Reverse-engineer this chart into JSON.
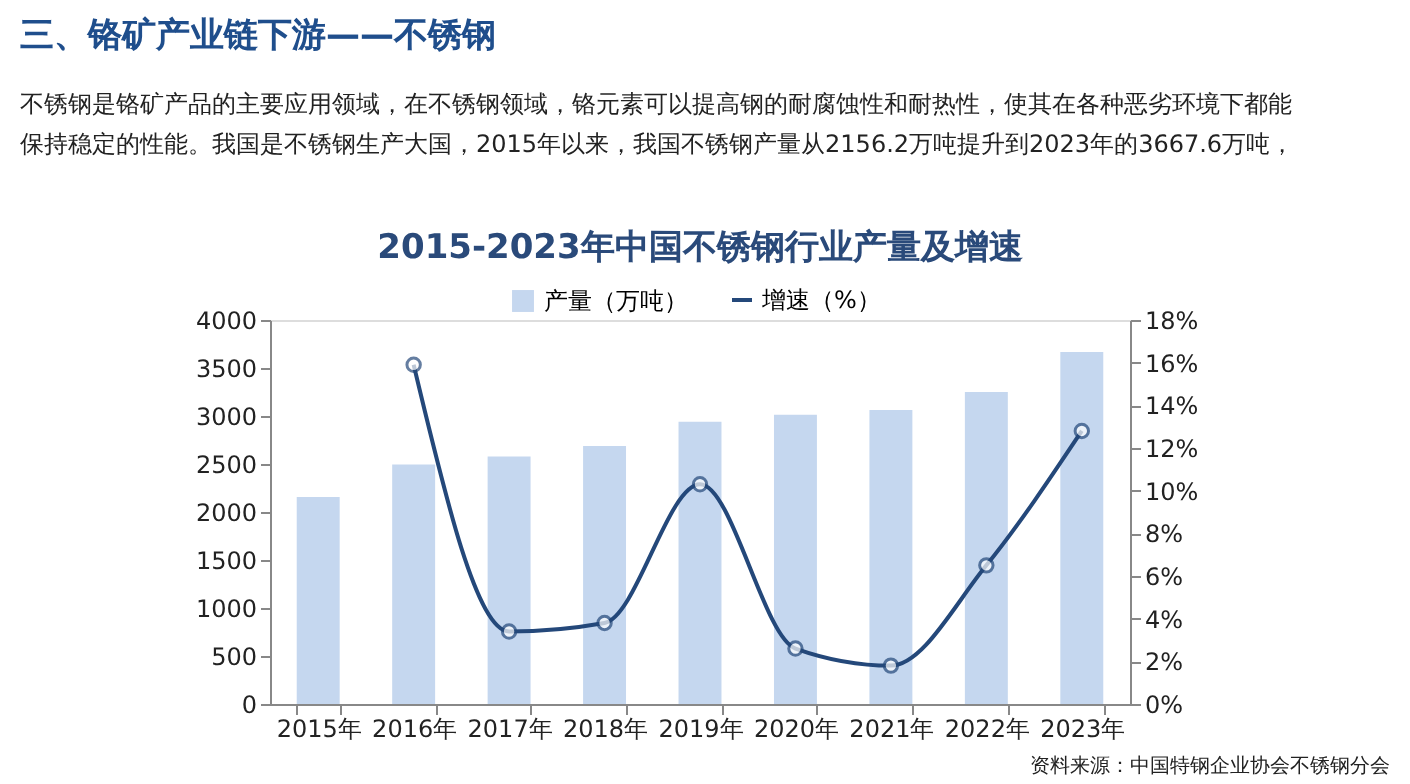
{
  "chart_data": {
    "type": "bar",
    "title": "2015-2023年中国不锈钢行业产量及增速",
    "categories": [
      "2015年",
      "2016年",
      "2017年",
      "2018年",
      "2019年",
      "2020年",
      "2021年",
      "2022年",
      "2023年"
    ],
    "series": [
      {
        "name": "产量（万吨）",
        "color": "#c5d7ef",
        "values": [
          2156.2,
          2494,
          2577,
          2687,
          2940,
          3014,
          3063,
          3250,
          3667.6
        ]
      },
      {
        "name": "增速（%）",
        "type": "line",
        "axis": "y2",
        "color": "#24487a",
        "marker": "circle",
        "values": [
          null,
          15.9,
          3.4,
          3.8,
          10.3,
          2.6,
          1.8,
          6.5,
          12.8
        ]
      }
    ],
    "ylim": [
      0,
      4000
    ],
    "yticks": [
      0,
      500,
      1000,
      1500,
      2000,
      2500,
      3000,
      3500,
      4000
    ],
    "y2lim": [
      0,
      18
    ],
    "y2ticks": [
      {
        "value": 0,
        "label": "0%"
      },
      {
        "value": 2,
        "label": "2%"
      },
      {
        "value": 4,
        "label": "4%"
      },
      {
        "value": 6,
        "label": "6%"
      },
      {
        "value": 8,
        "label": "8%"
      },
      {
        "value": 10,
        "label": "10%"
      },
      {
        "value": 12,
        "label": "12%"
      },
      {
        "value": 14,
        "label": "14%"
      },
      {
        "value": 16,
        "label": "16%"
      },
      {
        "value": 18,
        "label": "18%"
      }
    ],
    "grid": false,
    "legend": "top",
    "annotations": [
      "三、铬矿产业链下游——不锈钢",
      "不锈钢是铬矿产品的主要应用领域，在不锈钢领域，铬元素可以提高钢的耐腐蚀性和耐热性，使其在各种恶劣环境下都能保持稳定的性能。我国是不锈钢生产大国，2015年以来，我国不锈钢产量从2156.2万吨提升到2023年的3667.6万吨，",
      "资料来源：中国特钢企业协会不锈钢分会"
    ]
  }
}
